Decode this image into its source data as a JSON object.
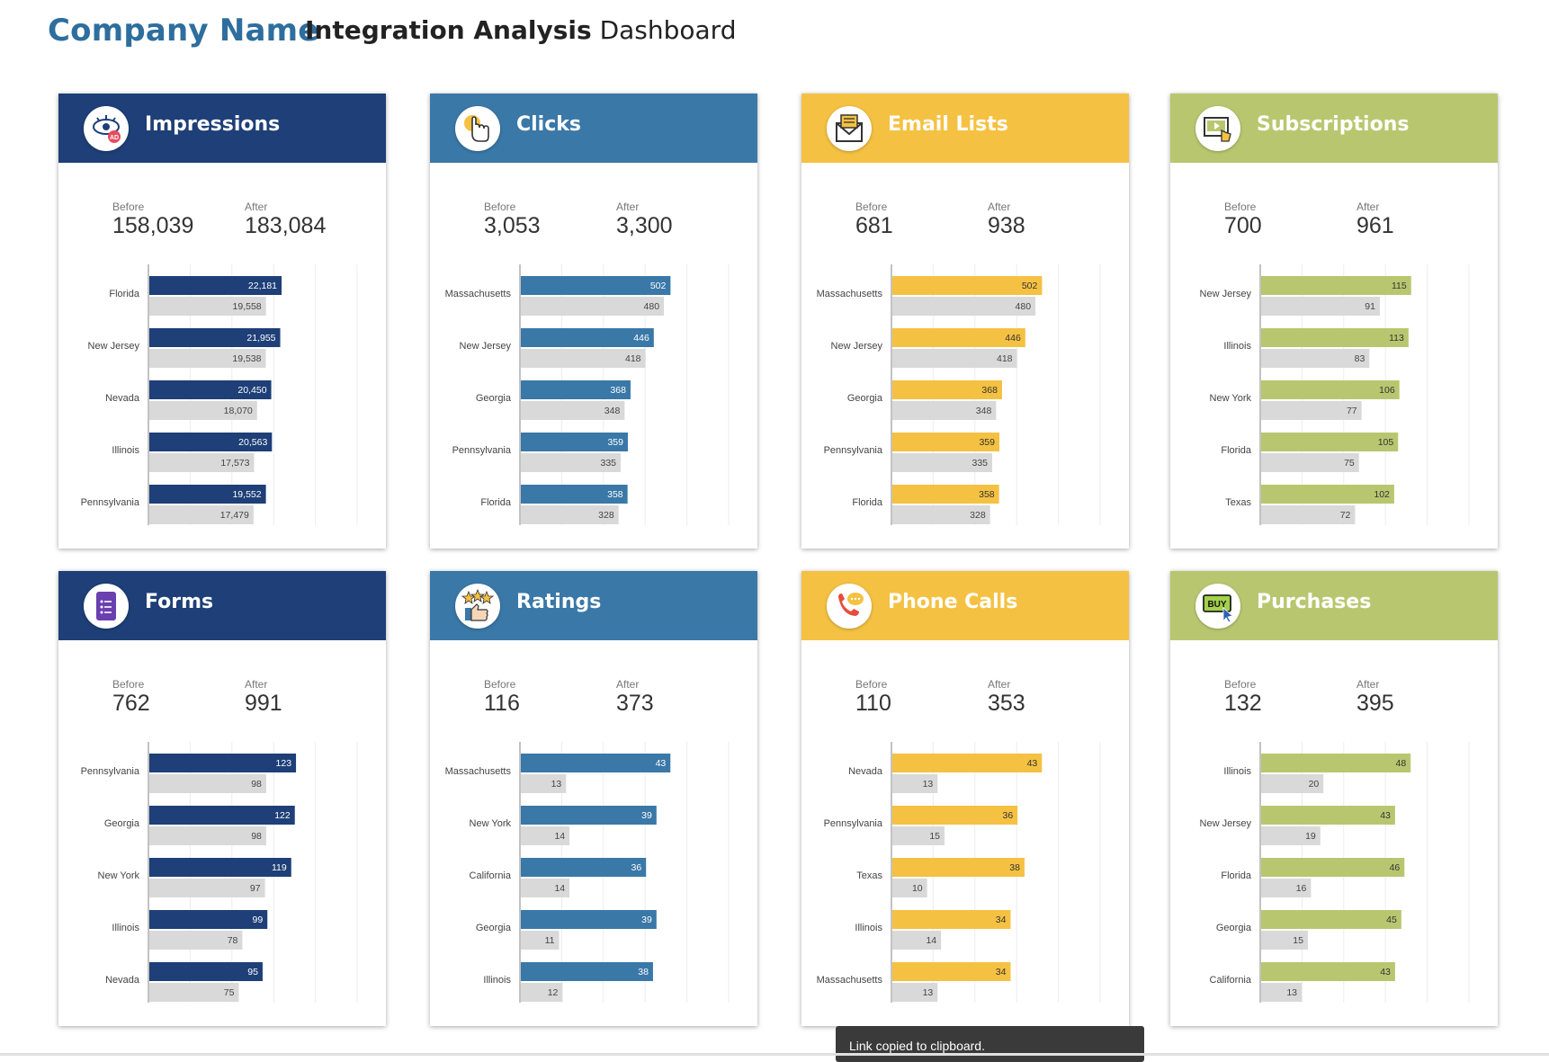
{
  "header": {
    "company_name": "Company Name",
    "title_bold": "Integration Analysis",
    "title_rest": "Dashboard"
  },
  "colors": {
    "navy": "#1e3f77",
    "blue": "#3a78a8",
    "yellow": "#f5c142",
    "green": "#b8c76f",
    "before_bar": "#d9d9d9"
  },
  "labels": {
    "before": "Before",
    "after": "After"
  },
  "cards": [
    {
      "title": "Impressions",
      "icon": "eye-ad-icon",
      "color": "#1e3f77",
      "light_text": true,
      "before": "158,039",
      "after": "183,084",
      "chart_data": {
        "type": "bar",
        "categories": [
          "Florida",
          "New Jersey",
          "Nevada",
          "Illinois",
          "Pennsylvania"
        ],
        "series": [
          {
            "name": "After",
            "values": [
              22181,
              21955,
              20450,
              20563,
              19552
            ],
            "labels": [
              "22,181",
              "21,955",
              "20,450",
              "20,563",
              "19,552"
            ]
          },
          {
            "name": "Before",
            "values": [
              19558,
              19538,
              18070,
              17573,
              17479
            ],
            "labels": [
              "19,558",
              "19,538",
              "18,070",
              "17,573",
              "17,479"
            ]
          }
        ],
        "xlim": [
          0,
          35000
        ]
      }
    },
    {
      "title": "Clicks",
      "icon": "pointer-hand-icon",
      "color": "#3a78a8",
      "light_text": true,
      "before": "3,053",
      "after": "3,300",
      "chart_data": {
        "type": "bar",
        "categories": [
          "Massachusetts",
          "New Jersey",
          "Georgia",
          "Pennsylvania",
          "Florida"
        ],
        "series": [
          {
            "name": "After",
            "values": [
              502,
              446,
              368,
              359,
              358
            ],
            "labels": [
              "502",
              "446",
              "368",
              "359",
              "358"
            ]
          },
          {
            "name": "Before",
            "values": [
              480,
              418,
              348,
              335,
              328
            ],
            "labels": [
              "480",
              "418",
              "348",
              "335",
              "328"
            ]
          }
        ],
        "xlim": [
          0,
          700
        ]
      }
    },
    {
      "title": "Email Lists",
      "icon": "envelope-icon",
      "color": "#f5c142",
      "light_text": false,
      "before": "681",
      "after": "938",
      "chart_data": {
        "type": "bar",
        "categories": [
          "Massachusetts",
          "New Jersey",
          "Georgia",
          "Pennsylvania",
          "Florida"
        ],
        "series": [
          {
            "name": "After",
            "values": [
              502,
              446,
              368,
              359,
              358
            ],
            "labels": [
              "502",
              "446",
              "368",
              "359",
              "358"
            ]
          },
          {
            "name": "Before",
            "values": [
              480,
              418,
              348,
              335,
              328
            ],
            "labels": [
              "480",
              "418",
              "348",
              "335",
              "328"
            ]
          }
        ],
        "xlim": [
          0,
          700
        ]
      }
    },
    {
      "title": "Subscriptions",
      "icon": "subscribe-screen-icon",
      "color": "#b8c76f",
      "light_text": false,
      "before": "700",
      "after": "961",
      "chart_data": {
        "type": "bar",
        "categories": [
          "New Jersey",
          "Illinois",
          "New York",
          "Florida",
          "Texas"
        ],
        "series": [
          {
            "name": "After",
            "values": [
              115,
              113,
              106,
              105,
              102
            ],
            "labels": [
              "115",
              "113",
              "106",
              "105",
              "102"
            ]
          },
          {
            "name": "Before",
            "values": [
              91,
              83,
              77,
              75,
              72
            ],
            "labels": [
              "91",
              "83",
              "77",
              "75",
              "72"
            ]
          }
        ],
        "xlim": [
          0,
          160
        ]
      }
    },
    {
      "title": "Forms",
      "icon": "form-document-icon",
      "color": "#1e3f77",
      "light_text": true,
      "before": "762",
      "after": "991",
      "chart_data": {
        "type": "bar",
        "categories": [
          "Pennsylvania",
          "Georgia",
          "New York",
          "Illinois",
          "Nevada"
        ],
        "series": [
          {
            "name": "After",
            "values": [
              123,
              122,
              119,
              99,
              95
            ],
            "labels": [
              "123",
              "122",
              "119",
              "99",
              "95"
            ]
          },
          {
            "name": "Before",
            "values": [
              98,
              98,
              97,
              78,
              75
            ],
            "labels": [
              "98",
              "98",
              "97",
              "78",
              "75"
            ]
          }
        ],
        "xlim": [
          0,
          175
        ]
      }
    },
    {
      "title": "Ratings",
      "icon": "stars-thumbs-up-icon",
      "color": "#3a78a8",
      "light_text": true,
      "before": "116",
      "after": "373",
      "chart_data": {
        "type": "bar",
        "categories": [
          "Massachusetts",
          "New York",
          "California",
          "Georgia",
          "Illinois"
        ],
        "series": [
          {
            "name": "After",
            "values": [
              43,
              39,
              36,
              39,
              38
            ],
            "labels": [
              "43",
              "39",
              "36",
              "39",
              "38"
            ]
          },
          {
            "name": "Before",
            "values": [
              13,
              14,
              14,
              11,
              12
            ],
            "labels": [
              "13",
              "14",
              "14",
              "11",
              "12"
            ]
          }
        ],
        "xlim": [
          0,
          60
        ]
      }
    },
    {
      "title": "Phone Calls",
      "icon": "phone-chat-icon",
      "color": "#f5c142",
      "light_text": false,
      "before": "110",
      "after": "353",
      "chart_data": {
        "type": "bar",
        "categories": [
          "Nevada",
          "Pennsylvania",
          "Texas",
          "Illinois",
          "Massachusetts"
        ],
        "series": [
          {
            "name": "After",
            "values": [
              43,
              36,
              38,
              34,
              34
            ],
            "labels": [
              "43",
              "36",
              "38",
              "34",
              "34"
            ]
          },
          {
            "name": "Before",
            "values": [
              13,
              15,
              10,
              14,
              13
            ],
            "labels": [
              "13",
              "15",
              "10",
              "14",
              "13"
            ]
          }
        ],
        "xlim": [
          0,
          60
        ]
      }
    },
    {
      "title": "Purchases",
      "icon": "buy-cursor-icon",
      "color": "#b8c76f",
      "light_text": false,
      "before": "132",
      "after": "395",
      "chart_data": {
        "type": "bar",
        "categories": [
          "Illinois",
          "New Jersey",
          "Florida",
          "Georgia",
          "California"
        ],
        "series": [
          {
            "name": "After",
            "values": [
              48,
              43,
              46,
              45,
              43
            ],
            "labels": [
              "48",
              "43",
              "46",
              "45",
              "43"
            ]
          },
          {
            "name": "Before",
            "values": [
              20,
              19,
              16,
              15,
              13
            ],
            "labels": [
              "20",
              "19",
              "16",
              "15",
              "13"
            ]
          }
        ],
        "xlim": [
          0,
          67
        ]
      }
    }
  ],
  "toast": {
    "message": "Link copied to clipboard."
  }
}
